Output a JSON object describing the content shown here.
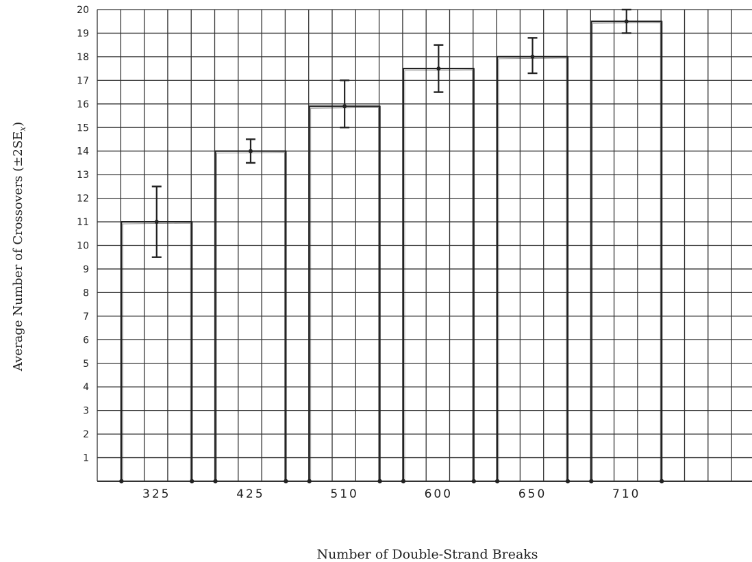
{
  "chart_data": {
    "type": "bar",
    "title": "",
    "xlabel": "Number of Double-Strand Breaks",
    "ylabel": {
      "main": "Average Number of Crossovers (±2SE",
      "subscript": "x",
      "close": ")"
    },
    "categories": [
      "325",
      "425",
      "510",
      "600",
      "650",
      "710"
    ],
    "values": [
      11,
      14,
      15.9,
      17.5,
      18,
      19.5
    ],
    "error_low": [
      9.5,
      13.5,
      15,
      16.5,
      17.3,
      19
    ],
    "error_high": [
      12.5,
      14.5,
      17,
      18.5,
      18.8,
      20
    ],
    "ylim": [
      0,
      20
    ],
    "yticks": [
      "1",
      "2",
      "3",
      "4",
      "5",
      "6",
      "7",
      "8",
      "9",
      "10",
      "11",
      "12",
      "13",
      "14",
      "15",
      "16",
      "17",
      "18",
      "19",
      "20"
    ],
    "grid": true,
    "legend": "none",
    "colors": {
      "line": "#222222",
      "grid": "#333333",
      "background": "#ffffff"
    }
  }
}
